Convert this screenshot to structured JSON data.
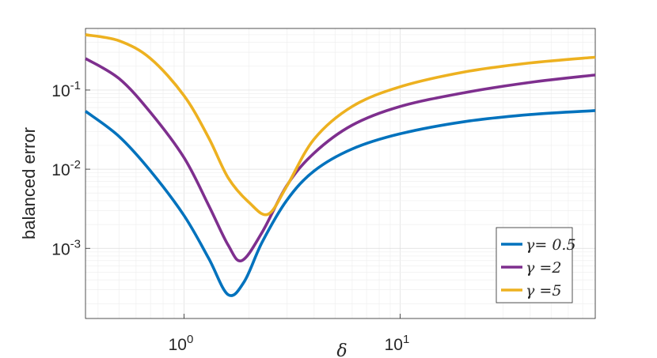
{
  "chart_data": {
    "type": "line",
    "title": "",
    "xlabel": "δ",
    "ylabel": "balanced error",
    "xscale": "log",
    "yscale": "log",
    "xlim": [
      0.35,
      80
    ],
    "ylim": [
      0.00013,
      0.6
    ],
    "grid": true,
    "legend_placement": "bottom-right",
    "x_ticks": [
      {
        "value": 1,
        "base": "10",
        "exp": "0"
      },
      {
        "value": 10,
        "base": "10",
        "exp": "1"
      }
    ],
    "y_ticks": [
      {
        "value": 0.001,
        "base": "10",
        "exp": "-3"
      },
      {
        "value": 0.01,
        "base": "10",
        "exp": "-2"
      },
      {
        "value": 0.1,
        "base": "10",
        "exp": "-1"
      }
    ],
    "series": [
      {
        "name": "γ= 0.5",
        "color": "#0072BD",
        "x": [
          0.35,
          0.5,
          0.7,
          1.0,
          1.3,
          1.6,
          1.9,
          2.3,
          3.0,
          4.0,
          6.0,
          10,
          20,
          40,
          80
        ],
        "y": [
          0.054,
          0.026,
          0.0095,
          0.0026,
          0.00075,
          0.00026,
          0.00038,
          0.0012,
          0.0041,
          0.0095,
          0.018,
          0.028,
          0.04,
          0.049,
          0.055
        ]
      },
      {
        "name": "γ =2",
        "color": "#7E2F8E",
        "x": [
          0.35,
          0.5,
          0.7,
          1.0,
          1.3,
          1.6,
          1.85,
          2.3,
          3.0,
          4.0,
          6.0,
          10,
          20,
          40,
          80
        ],
        "y": [
          0.25,
          0.14,
          0.052,
          0.014,
          0.0035,
          0.0011,
          0.0007,
          0.0016,
          0.0063,
          0.016,
          0.036,
          0.062,
          0.093,
          0.125,
          0.155
        ]
      },
      {
        "name": "γ =5",
        "color": "#EDB120",
        "x": [
          0.35,
          0.5,
          0.7,
          1.0,
          1.3,
          1.6,
          2.0,
          2.45,
          3.0,
          4.0,
          6.0,
          10,
          20,
          40,
          80
        ],
        "y": [
          0.5,
          0.42,
          0.25,
          0.085,
          0.025,
          0.0078,
          0.0038,
          0.0027,
          0.0062,
          0.024,
          0.062,
          0.11,
          0.17,
          0.22,
          0.26
        ]
      }
    ]
  }
}
